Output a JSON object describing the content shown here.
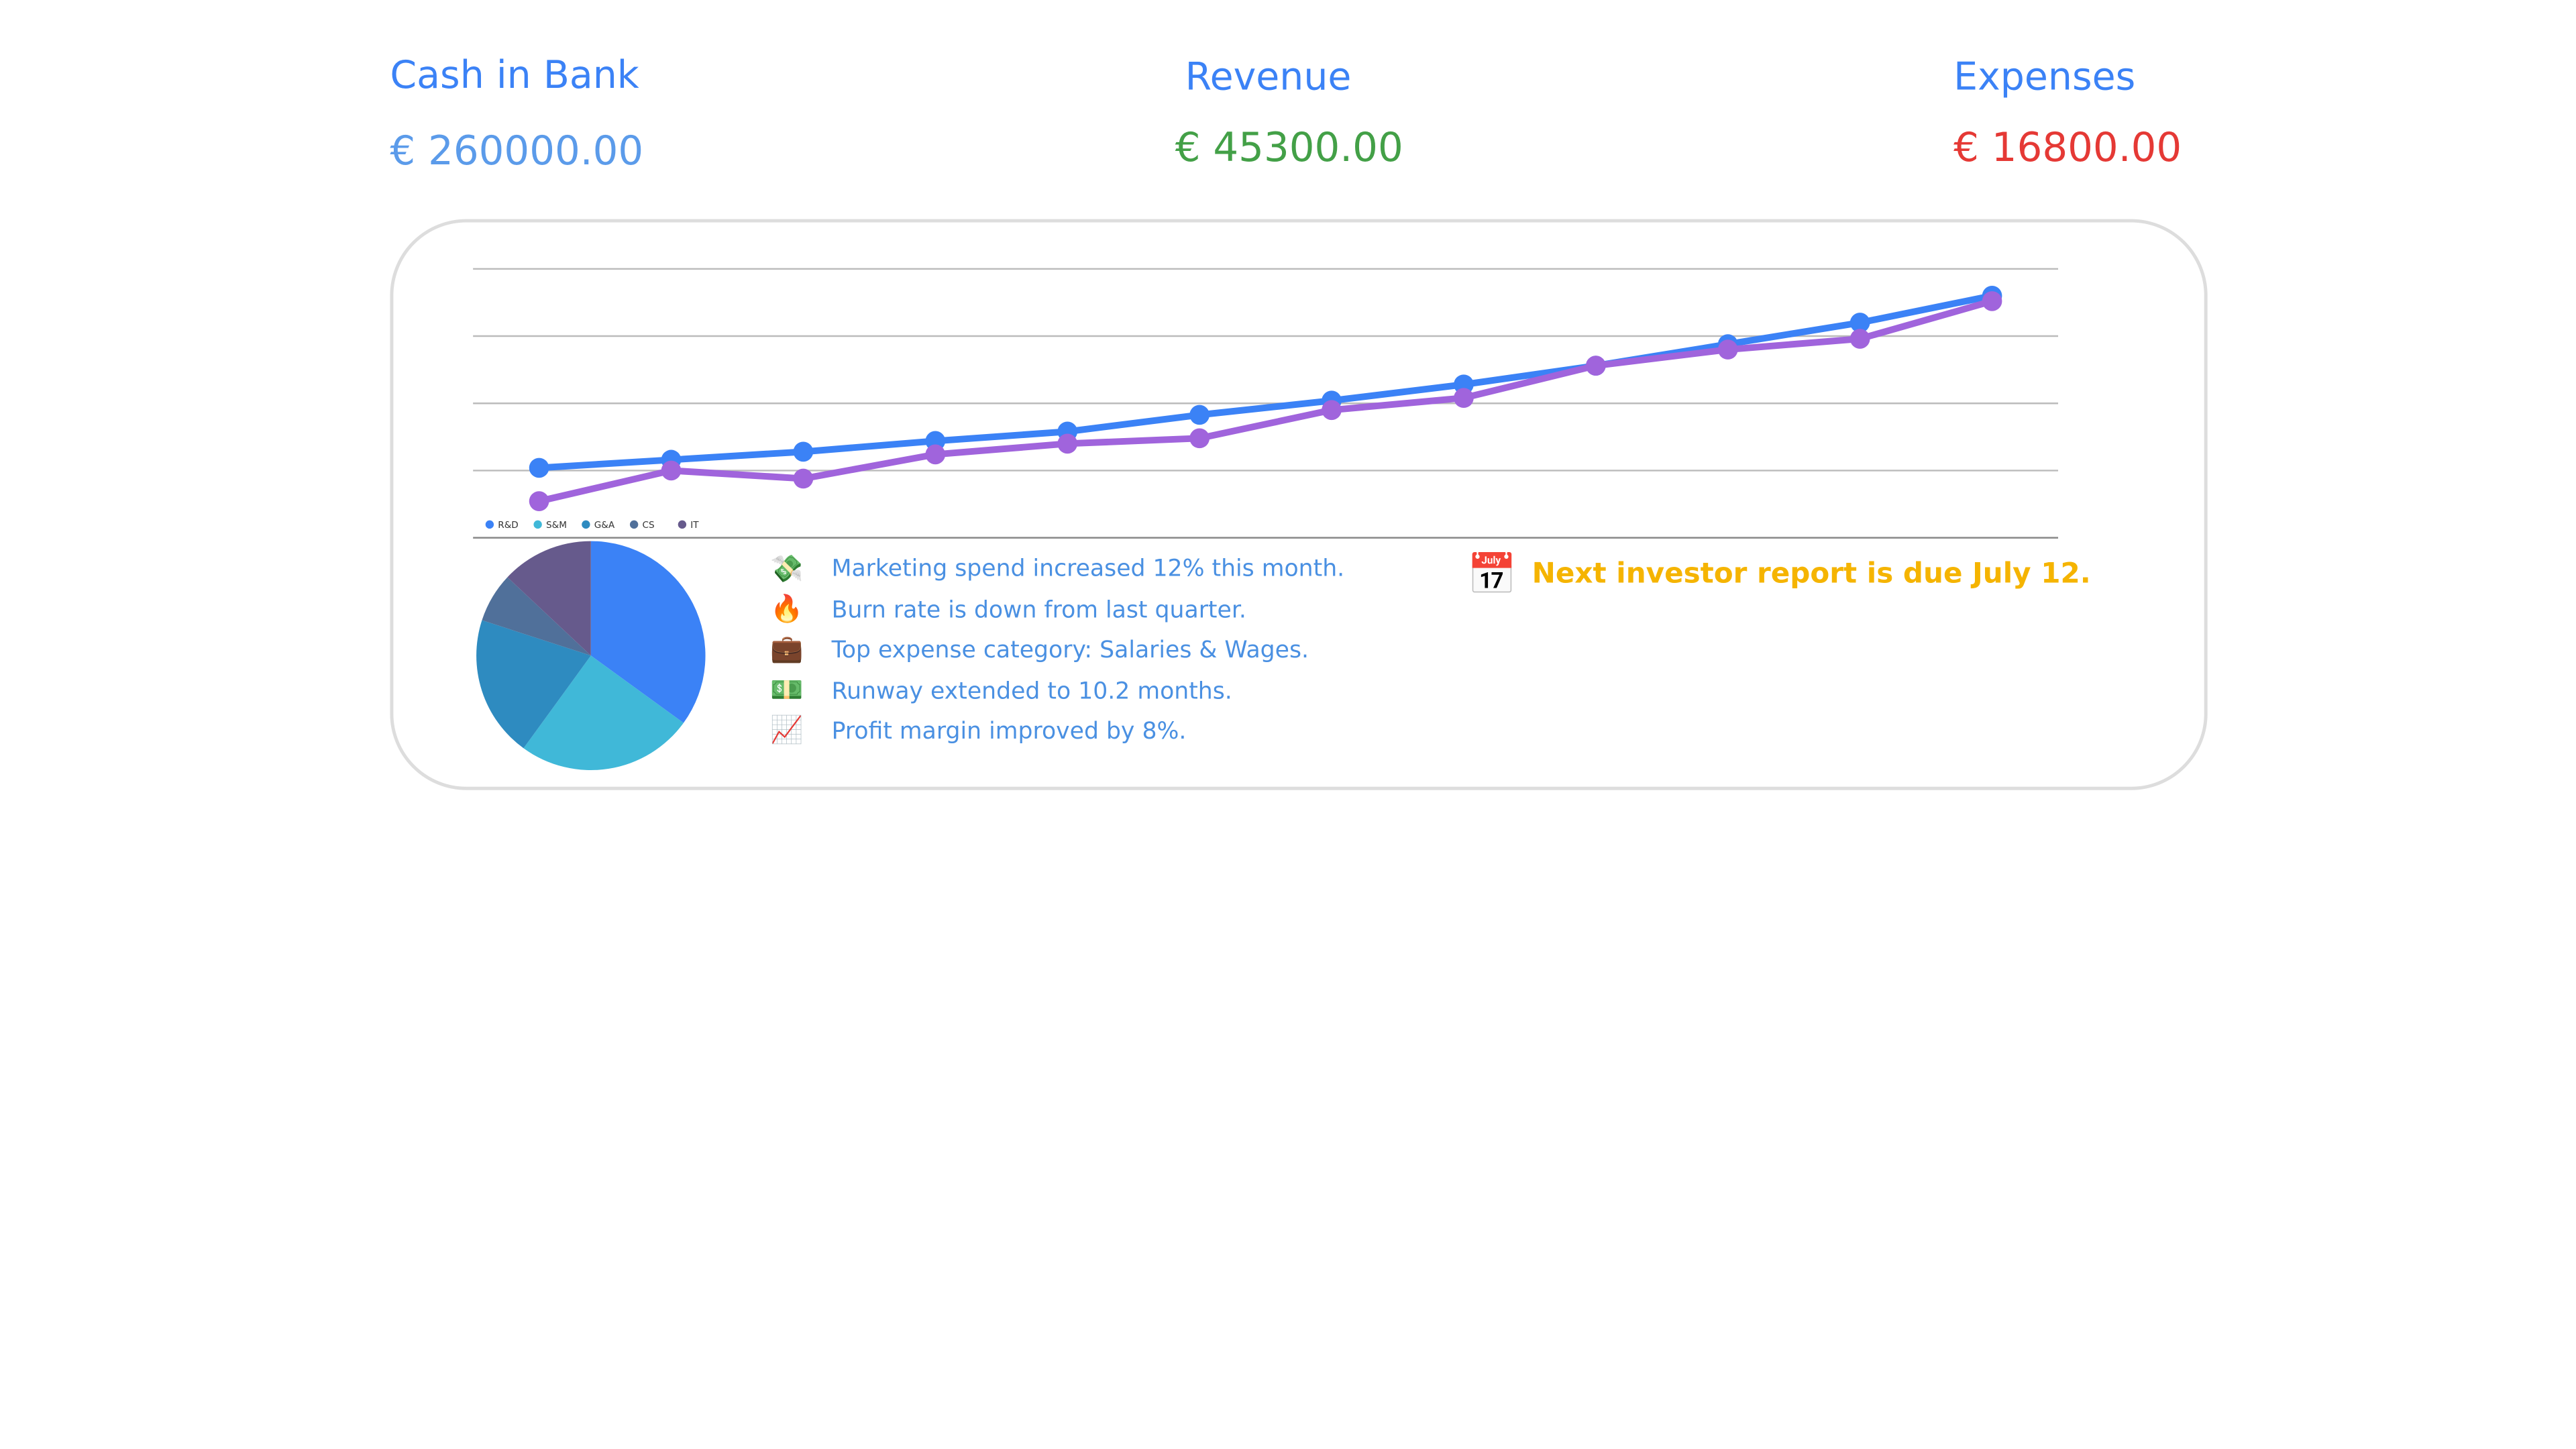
{
  "kpis": [
    {
      "label": "Cash in Bank",
      "value": "€ 260000.00"
    },
    {
      "label": "Revenue",
      "value": "€ 45300.00"
    },
    {
      "label": "Expenses",
      "value": "€ 16800.00"
    }
  ],
  "chart_data": [
    {
      "type": "line",
      "categories": [
        null,
        null,
        null,
        null,
        null,
        null,
        null,
        null,
        null,
        null,
        null,
        null
      ],
      "series": [
        {
          "color": "#3b82f6",
          "values": [
            26,
            29,
            32,
            36,
            39.5,
            45.7,
            51,
            57,
            64,
            72,
            80,
            90
          ]
        },
        {
          "color": "#a064dc",
          "values": [
            13.6,
            25,
            22,
            31,
            35,
            37,
            47.5,
            52,
            64,
            70,
            74,
            88
          ]
        }
      ],
      "ylim": [
        0,
        100
      ],
      "yticks": [
        0,
        25,
        50,
        75,
        100
      ],
      "grid": true
    },
    {
      "type": "pie",
      "categories": [
        "R&D",
        "S&M",
        "G&A",
        "CS",
        "IT"
      ],
      "values": [
        35,
        25,
        20,
        7,
        13
      ],
      "colors": [
        "#3b82f6",
        "#40b8d8",
        "#2e8bc0",
        "#50709a",
        "#665a8c"
      ]
    }
  ],
  "notes": [
    "Marketing spend increased 12% this month.",
    "Burn rate is down from last quarter.",
    "Top expense category: Salaries & Wages.",
    "Runway extended to 10.2 months.",
    "Profit margin improved by 8%."
  ],
  "investor_note": "Next investor report is due July 12."
}
